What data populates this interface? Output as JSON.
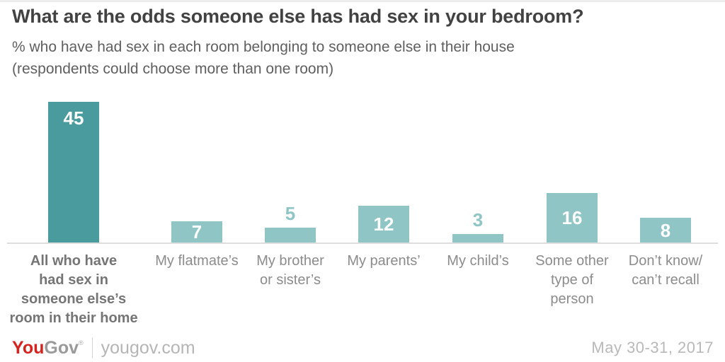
{
  "header": {
    "title": "What are the odds someone else has had sex in your bedroom?",
    "subtitle": "% who have had sex in each room belonging to someone else in their house\n(respondents could choose more than one room)"
  },
  "chart_data": {
    "type": "bar",
    "title": "What are the odds someone else has had sex in your bedroom?",
    "subtitle": "% who have had sex in each room belonging to someone else in their house (respondents could choose more than one room)",
    "unit": "%",
    "ylim": [
      0,
      45
    ],
    "grid": false,
    "legend": false,
    "categories": [
      "All who have had sex in someone else’s room in their home",
      "My flatmate’s",
      "My brother or sister’s",
      "My parents’",
      "My child’s",
      "Some other type of person",
      "Don’t know/ can’t recall"
    ],
    "values": [
      45,
      7,
      5,
      12,
      3,
      16,
      8
    ],
    "colors": {
      "highlight": "#4a9b9d",
      "default": "#8fc5c5",
      "axis_line": "#dedede"
    },
    "bars": [
      {
        "display_label": "All who have\nhad sex in\nsomeone else’s\nroom in their home",
        "value": 45,
        "color": "#4a9b9d",
        "value_label_position": "inside",
        "emphasis": true
      },
      {
        "display_label": "My flatmate’s",
        "value": 7,
        "color": "#8fc5c5",
        "value_label_position": "inside",
        "emphasis": false
      },
      {
        "display_label": "My brother\nor sister’s",
        "value": 5,
        "color": "#8fc5c5",
        "value_label_position": "above",
        "emphasis": false
      },
      {
        "display_label": "My parents’",
        "value": 12,
        "color": "#8fc5c5",
        "value_label_position": "inside",
        "emphasis": false
      },
      {
        "display_label": "My child’s",
        "value": 3,
        "color": "#8fc5c5",
        "value_label_position": "above",
        "emphasis": false
      },
      {
        "display_label": "Some other\ntype of\nperson",
        "value": 16,
        "color": "#8fc5c5",
        "value_label_position": "inside",
        "emphasis": false
      },
      {
        "display_label": "Don’t know/\ncan’t recall",
        "value": 8,
        "color": "#8fc5c5",
        "value_label_position": "inside",
        "emphasis": false
      }
    ]
  },
  "footer": {
    "logo_you": "You",
    "logo_gov": "Gov",
    "logo_reg": "®",
    "logo_red": "#d6231e",
    "site": "yougov.com",
    "date": "May 30-31, 2017"
  }
}
